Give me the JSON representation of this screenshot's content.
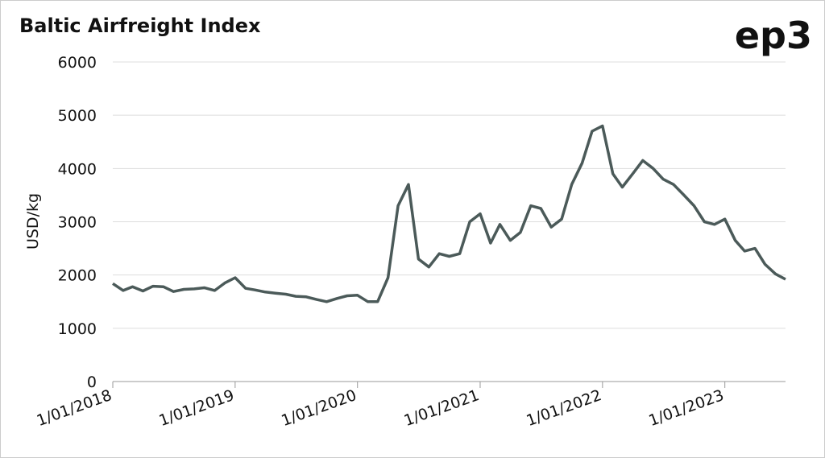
{
  "chart_data": {
    "type": "line",
    "title": "Baltic Airfreight Index",
    "logo": "ep3",
    "ylabel": "USD/kg",
    "x": [
      "2018-01-01",
      "2018-02-01",
      "2018-03-01",
      "2018-04-01",
      "2018-05-01",
      "2018-06-01",
      "2018-07-01",
      "2018-08-01",
      "2018-09-01",
      "2018-10-01",
      "2018-11-01",
      "2018-12-01",
      "2019-01-01",
      "2019-02-01",
      "2019-03-01",
      "2019-04-01",
      "2019-05-01",
      "2019-06-01",
      "2019-07-01",
      "2019-08-01",
      "2019-09-01",
      "2019-10-01",
      "2019-11-01",
      "2019-12-01",
      "2020-01-01",
      "2020-02-01",
      "2020-03-01",
      "2020-04-01",
      "2020-05-01",
      "2020-06-01",
      "2020-07-01",
      "2020-08-01",
      "2020-09-01",
      "2020-10-01",
      "2020-11-01",
      "2020-12-01",
      "2021-01-01",
      "2021-02-01",
      "2021-03-01",
      "2021-04-01",
      "2021-05-01",
      "2021-06-01",
      "2021-07-01",
      "2021-08-01",
      "2021-09-01",
      "2021-10-01",
      "2021-11-01",
      "2021-12-01",
      "2022-01-01",
      "2022-02-01",
      "2022-03-01",
      "2022-04-01",
      "2022-05-01",
      "2022-06-01",
      "2022-07-01",
      "2022-08-01",
      "2022-09-01",
      "2022-10-01",
      "2022-11-01",
      "2022-12-01",
      "2023-01-01",
      "2023-02-01",
      "2023-03-01",
      "2023-04-01",
      "2023-05-01",
      "2023-06-01",
      "2023-07-01"
    ],
    "series": [
      {
        "name": "Baltic Airfreight Index",
        "color": "#4b5a59",
        "values": [
          1840,
          1710,
          1780,
          1700,
          1790,
          1780,
          1690,
          1730,
          1740,
          1760,
          1710,
          1850,
          1950,
          1750,
          1720,
          1680,
          1660,
          1640,
          1600,
          1590,
          1540,
          1500,
          1560,
          1610,
          1620,
          1500,
          1500,
          1950,
          3300,
          3700,
          2300,
          2150,
          2400,
          2350,
          2400,
          3000,
          3150,
          2600,
          2950,
          2650,
          2800,
          3300,
          3250,
          2900,
          3050,
          3700,
          4100,
          4700,
          4800,
          3900,
          3650,
          3900,
          4150,
          4000,
          3800,
          3700,
          3500,
          3300,
          3000,
          2950,
          3050,
          2650,
          2450,
          2500,
          2200,
          2020,
          1920
        ]
      }
    ],
    "xlim": [
      "2018-01-01",
      "2023-07-01"
    ],
    "xticks": [
      {
        "value": "2018-01-01",
        "label": "1/01/2018"
      },
      {
        "value": "2019-01-01",
        "label": "1/01/2019"
      },
      {
        "value": "2020-01-01",
        "label": "1/01/2020"
      },
      {
        "value": "2021-01-01",
        "label": "1/01/2021"
      },
      {
        "value": "2022-01-01",
        "label": "1/01/2022"
      },
      {
        "value": "2023-01-01",
        "label": "1/01/2023"
      }
    ],
    "ylim": [
      0,
      6000
    ],
    "yticks": [
      0,
      1000,
      2000,
      3000,
      4000,
      5000,
      6000
    ],
    "grid": true
  }
}
